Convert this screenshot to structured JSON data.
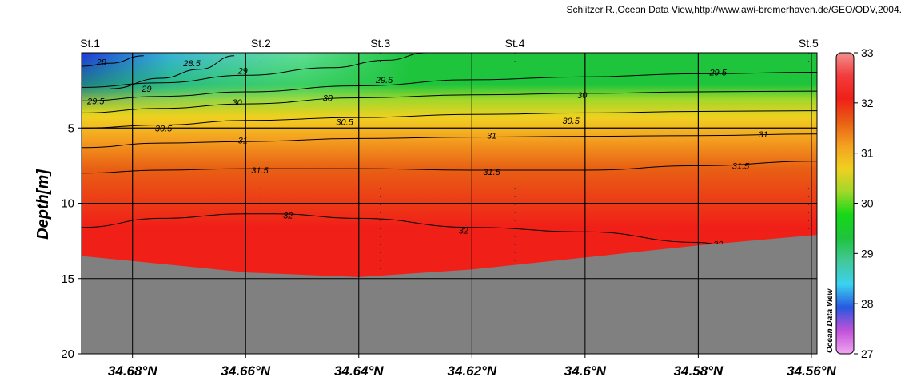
{
  "credit": "Schlitzer,R.,Ocean Data View,http://www.awi-bremerhaven.de/GEO/ODV,2004.",
  "watermark": "Ocean Data View",
  "chart_data": {
    "type": "section_contour",
    "xlabel": "",
    "ylabel": "Depth[m]",
    "x_direction": "decreasing",
    "xlim": [
      34.689,
      34.559
    ],
    "ylim": [
      0,
      20
    ],
    "y_inverted": true,
    "x_ticks": [
      34.68,
      34.66,
      34.64,
      34.62,
      34.6,
      34.58,
      34.56
    ],
    "x_tick_labels": [
      "34.68°N",
      "34.66°N",
      "34.64°N",
      "34.62°N",
      "34.6°N",
      "34.58°N",
      "34.56°N"
    ],
    "y_ticks": [
      5,
      10,
      15,
      20
    ],
    "y_tick_labels": [
      "5",
      "10",
      "15",
      "20"
    ],
    "grid": true,
    "stations": [
      {
        "name": "St.1",
        "lat": 34.6875
      },
      {
        "name": "St.2",
        "lat": 34.6573
      },
      {
        "name": "St.3",
        "lat": 34.6362
      },
      {
        "name": "St.4",
        "lat": 34.6124
      },
      {
        "name": "St.5",
        "lat": 34.5605
      }
    ],
    "bottom_depth_profile": [
      {
        "lat": 34.689,
        "depth": 13.5
      },
      {
        "lat": 34.6595,
        "depth": 14.6
      },
      {
        "lat": 34.64,
        "depth": 14.9
      },
      {
        "lat": 34.62,
        "depth": 14.4
      },
      {
        "lat": 34.6,
        "depth": 13.6
      },
      {
        "lat": 34.58,
        "depth": 12.8
      },
      {
        "lat": 34.559,
        "depth": 12.1
      }
    ],
    "colorbar": {
      "min": 27,
      "max": 33,
      "ticks": [
        27,
        28,
        29,
        30,
        31,
        32,
        33
      ],
      "tick_labels": [
        "27",
        "28",
        "29",
        "30",
        "31",
        "32",
        "33"
      ],
      "colors": [
        "#f2a6f2",
        "#c052d8",
        "#2858e0",
        "#3ad2f0",
        "#42c89a",
        "#1ec43c",
        "#16d816",
        "#a0d82a",
        "#f0d020",
        "#f4a020",
        "#e86014",
        "#f02018",
        "#f23c3c",
        "#f29090"
      ]
    },
    "contours": [
      {
        "value": 28,
        "label": "28",
        "points": [
          [
            34.689,
            0.9
          ],
          [
            34.684,
            0.7
          ],
          [
            34.678,
            0.2
          ]
        ],
        "label_positions": [
          [
            34.6855,
            0.6
          ]
        ]
      },
      {
        "value": 28.5,
        "label": "28.5",
        "points": [
          [
            34.684,
            2.4
          ],
          [
            34.675,
            1.7
          ],
          [
            34.668,
            1.1
          ],
          [
            34.662,
            0.2
          ]
        ],
        "label_positions": [
          [
            34.6695,
            0.7
          ]
        ]
      },
      {
        "value": 29,
        "label": "29",
        "points": [
          [
            34.689,
            2.3
          ],
          [
            34.675,
            2.0
          ],
          [
            34.66,
            1.5
          ],
          [
            34.645,
            1.0
          ],
          [
            34.635,
            0.5
          ],
          [
            34.628,
            0
          ]
        ],
        "label_positions": [
          [
            34.6775,
            2.4
          ],
          [
            34.6605,
            1.2
          ]
        ]
      },
      {
        "value": 29.5,
        "label": "29.5",
        "points": [
          [
            34.689,
            3.2
          ],
          [
            34.675,
            2.9
          ],
          [
            34.66,
            2.6
          ],
          [
            34.64,
            2.2
          ],
          [
            34.62,
            1.8
          ],
          [
            34.6,
            1.6
          ],
          [
            34.58,
            1.4
          ],
          [
            34.559,
            1.3
          ]
        ],
        "label_positions": [
          [
            34.6865,
            3.2
          ],
          [
            34.6355,
            1.8
          ],
          [
            34.5765,
            1.3
          ]
        ]
      },
      {
        "value": 30,
        "label": "30",
        "points": [
          [
            34.689,
            4.0
          ],
          [
            34.675,
            3.7
          ],
          [
            34.66,
            3.4
          ],
          [
            34.64,
            3.0
          ],
          [
            34.62,
            2.8
          ],
          [
            34.6,
            2.7
          ],
          [
            34.58,
            2.6
          ],
          [
            34.559,
            2.55
          ]
        ],
        "label_positions": [
          [
            34.6615,
            3.3
          ],
          [
            34.6455,
            3.0
          ],
          [
            34.6005,
            2.8
          ]
        ]
      },
      {
        "value": 30.5,
        "label": "30.5",
        "points": [
          [
            34.689,
            5.0
          ],
          [
            34.675,
            4.8
          ],
          [
            34.66,
            4.5
          ],
          [
            34.64,
            4.3
          ],
          [
            34.62,
            4.1
          ],
          [
            34.6,
            4.0
          ],
          [
            34.58,
            3.9
          ],
          [
            34.559,
            3.85
          ]
        ],
        "label_positions": [
          [
            34.6745,
            5.0
          ],
          [
            34.6425,
            4.6
          ],
          [
            34.6025,
            4.5
          ]
        ]
      },
      {
        "value": 31,
        "label": "31",
        "points": [
          [
            34.689,
            6.3
          ],
          [
            34.675,
            6.0
          ],
          [
            34.66,
            5.9
          ],
          [
            34.64,
            5.7
          ],
          [
            34.62,
            5.6
          ],
          [
            34.6,
            5.55
          ],
          [
            34.58,
            5.5
          ],
          [
            34.559,
            5.4
          ]
        ],
        "label_positions": [
          [
            34.6605,
            5.8
          ],
          [
            34.6165,
            5.5
          ],
          [
            34.5685,
            5.4
          ]
        ]
      },
      {
        "value": 31.5,
        "label": "31.5",
        "points": [
          [
            34.689,
            8.0
          ],
          [
            34.675,
            7.8
          ],
          [
            34.66,
            7.7
          ],
          [
            34.64,
            7.7
          ],
          [
            34.62,
            7.8
          ],
          [
            34.6,
            7.8
          ],
          [
            34.58,
            7.5
          ],
          [
            34.559,
            7.2
          ]
        ],
        "label_positions": [
          [
            34.6575,
            7.8
          ],
          [
            34.6165,
            7.9
          ],
          [
            34.5725,
            7.5
          ]
        ]
      },
      {
        "value": 32,
        "label": "32",
        "points": [
          [
            34.689,
            11.6
          ],
          [
            34.675,
            11.0
          ],
          [
            34.66,
            10.7
          ],
          [
            34.655,
            10.7
          ],
          [
            34.64,
            11.0
          ],
          [
            34.62,
            11.6
          ],
          [
            34.6,
            11.9
          ],
          [
            34.58,
            12.6
          ],
          [
            34.575,
            12.8
          ]
        ],
        "label_positions": [
          [
            34.6525,
            10.8
          ],
          [
            34.6215,
            11.8
          ],
          [
            34.5765,
            12.7
          ]
        ]
      }
    ]
  }
}
